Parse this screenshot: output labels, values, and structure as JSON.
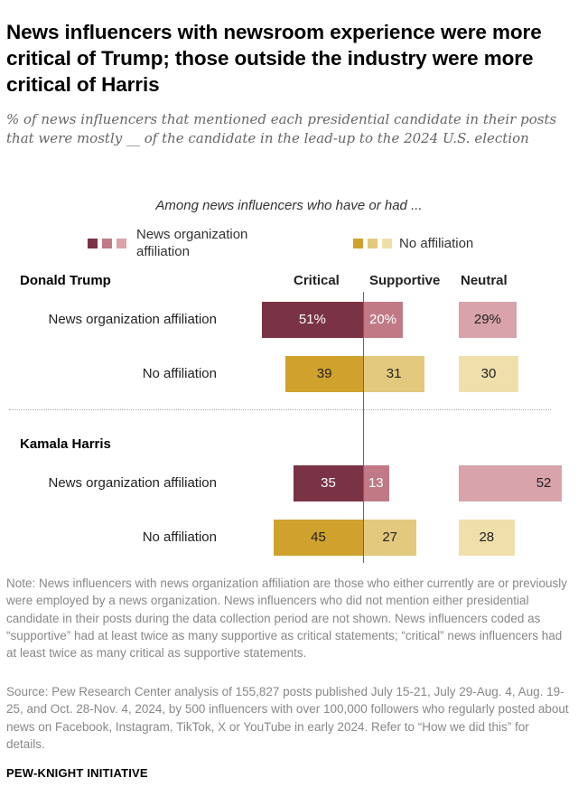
{
  "title": "News influencers with newsroom experience were more critical of Trump; those outside the industry were more critical of Harris",
  "subtitle": "% of news influencers that mentioned each presidential candidate in their posts that were mostly __ of the candidate in the lead-up to the 2024 U.S. election",
  "chart_data": {
    "type": "bar",
    "orientation": "horizontal-diverging",
    "group_caption": "Among news influencers who have or had ...",
    "legend": [
      {
        "label": "News organization affiliation",
        "colors": [
          "#7a3344",
          "#c17a85",
          "#d8a3ab"
        ]
      },
      {
        "label": "No affiliation",
        "colors": [
          "#cfa22e",
          "#e3c97e",
          "#efdfab"
        ]
      }
    ],
    "columns": [
      "Critical",
      "Supportive",
      "Neutral"
    ],
    "sections": [
      {
        "label": "Donald Trump",
        "rows": [
          {
            "label": "News organization affiliation",
            "critical": 51,
            "supportive": 20,
            "neutral": 29,
            "labels": [
              "51%",
              "20%",
              "29%"
            ]
          },
          {
            "label": "No affiliation",
            "critical": 39,
            "supportive": 31,
            "neutral": 30,
            "labels": [
              "39",
              "31",
              "30"
            ]
          }
        ]
      },
      {
        "label": "Kamala Harris",
        "rows": [
          {
            "label": "News organization affiliation",
            "critical": 35,
            "supportive": 13,
            "neutral": 52,
            "labels": [
              "35",
              "13",
              "52"
            ]
          },
          {
            "label": "No affiliation",
            "critical": 45,
            "supportive": 27,
            "neutral": 28,
            "labels": [
              "45",
              "27",
              "28"
            ]
          }
        ]
      }
    ],
    "colors": {
      "affiliation": {
        "critical": "#7a3344",
        "supportive": "#c17a85",
        "neutral": "#d8a3ab"
      },
      "no_affiliation": {
        "critical": "#cfa22e",
        "supportive": "#e3c97e",
        "neutral": "#efdfab"
      },
      "axis": "#6b6f2a"
    }
  },
  "note": "Note: News influencers with news organization affiliation are those who either currently are or previously were employed by a news organization. News influencers who did not mention either presidential candidate in their posts during the data collection period are not shown. News influencers coded as “supportive” had at least twice as many supportive as critical statements; “critical” news influencers had at least twice as many critical as supportive statements.",
  "source": "Source: Pew Research Center analysis of 155,827 posts published July 15-21, July 29-Aug. 4, Aug. 19-25, and Oct. 28-Nov. 4, 2024, by 500 influencers with over 100,000 followers who regularly posted about news on Facebook, Instagram, TikTok, X or YouTube in early 2024. Refer to “How we did this” for details.",
  "brand": "PEW-KNIGHT INITIATIVE"
}
